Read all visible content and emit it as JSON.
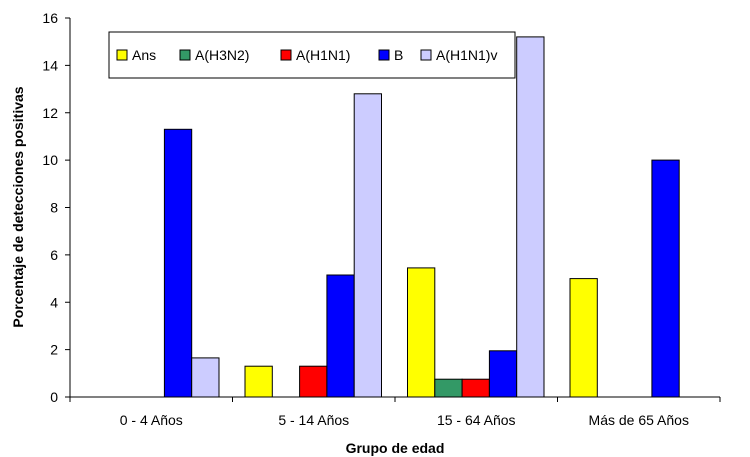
{
  "chart_data": {
    "type": "bar",
    "categories": [
      "0 - 4 Años",
      "5 - 14 Años",
      "15 - 64 Años",
      "Más de 65 Años"
    ],
    "series": [
      {
        "name": "Ans",
        "color": "#FFFF00",
        "values": [
          0,
          1.3,
          5.45,
          5.0
        ]
      },
      {
        "name": "A(H3N2)",
        "color": "#339966",
        "values": [
          0,
          0,
          0.75,
          0
        ]
      },
      {
        "name": "A(H1N1)",
        "color": "#FF0000",
        "values": [
          0,
          1.3,
          0.75,
          0
        ]
      },
      {
        "name": "B",
        "color": "#0000FF",
        "values": [
          11.3,
          5.15,
          1.95,
          10.0
        ]
      },
      {
        "name": "A(H1N1)v",
        "color": "#CCCCFF",
        "values": [
          1.65,
          12.8,
          15.2,
          0
        ]
      }
    ],
    "xlabel": "Grupo de edad",
    "ylabel": "Porcentaje de detecciones positivas",
    "ylim": [
      0,
      16
    ],
    "yticks": [
      0,
      2,
      4,
      6,
      8,
      10,
      12,
      14,
      16
    ],
    "grid": false,
    "legend_position": "top-left"
  }
}
